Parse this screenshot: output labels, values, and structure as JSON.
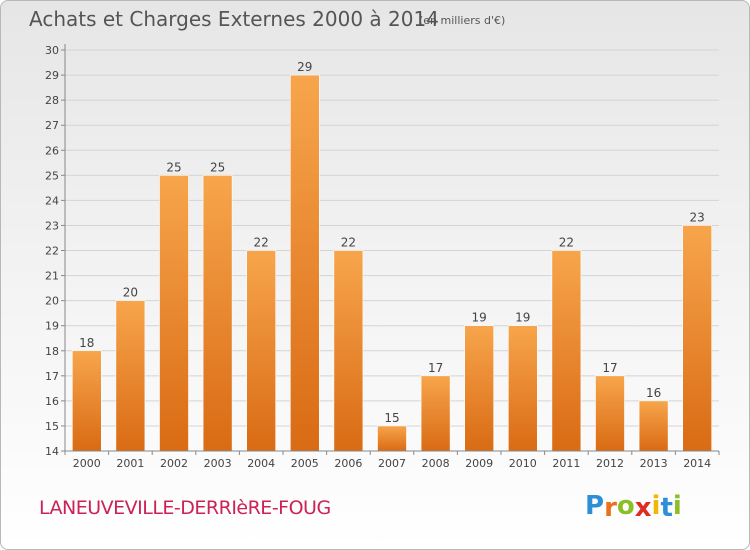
{
  "header": {
    "title": "Achats et Charges Externes 2000 à 2014",
    "subtitle": "(en milliers d'€)"
  },
  "footer": {
    "commune": "LANEUVEVILLE-DERRIèRE-FOUG",
    "logo_letters": [
      "P",
      "r",
      "o",
      "x",
      "i",
      "t",
      "i"
    ],
    "logo_colors": [
      "#2d8fd5",
      "#e9701e",
      "#8cbf26",
      "#e02b25",
      "#f2b705",
      "#2d8fd5",
      "#8cbf26"
    ]
  },
  "colors": {
    "bar_top": "#f7a54c",
    "bar_bottom": "#d96b14",
    "grid": "#d4d4d4",
    "axis": "#888888",
    "text": "#444444"
  },
  "chart_data": {
    "type": "bar",
    "categories": [
      "2000",
      "2001",
      "2002",
      "2003",
      "2004",
      "2005",
      "2006",
      "2007",
      "2008",
      "2009",
      "2010",
      "2011",
      "2012",
      "2013",
      "2014"
    ],
    "values": [
      18,
      20,
      25,
      25,
      22,
      29,
      22,
      15,
      17,
      19,
      19,
      22,
      17,
      16,
      23
    ],
    "title": "Achats et Charges Externes 2000 à 2014",
    "xlabel": "",
    "ylabel": "",
    "ylim": [
      14,
      30
    ],
    "yticks": [
      14,
      15,
      16,
      17,
      18,
      19,
      20,
      21,
      22,
      23,
      24,
      25,
      26,
      27,
      28,
      29,
      30
    ],
    "grid": true,
    "data_labels": true
  }
}
